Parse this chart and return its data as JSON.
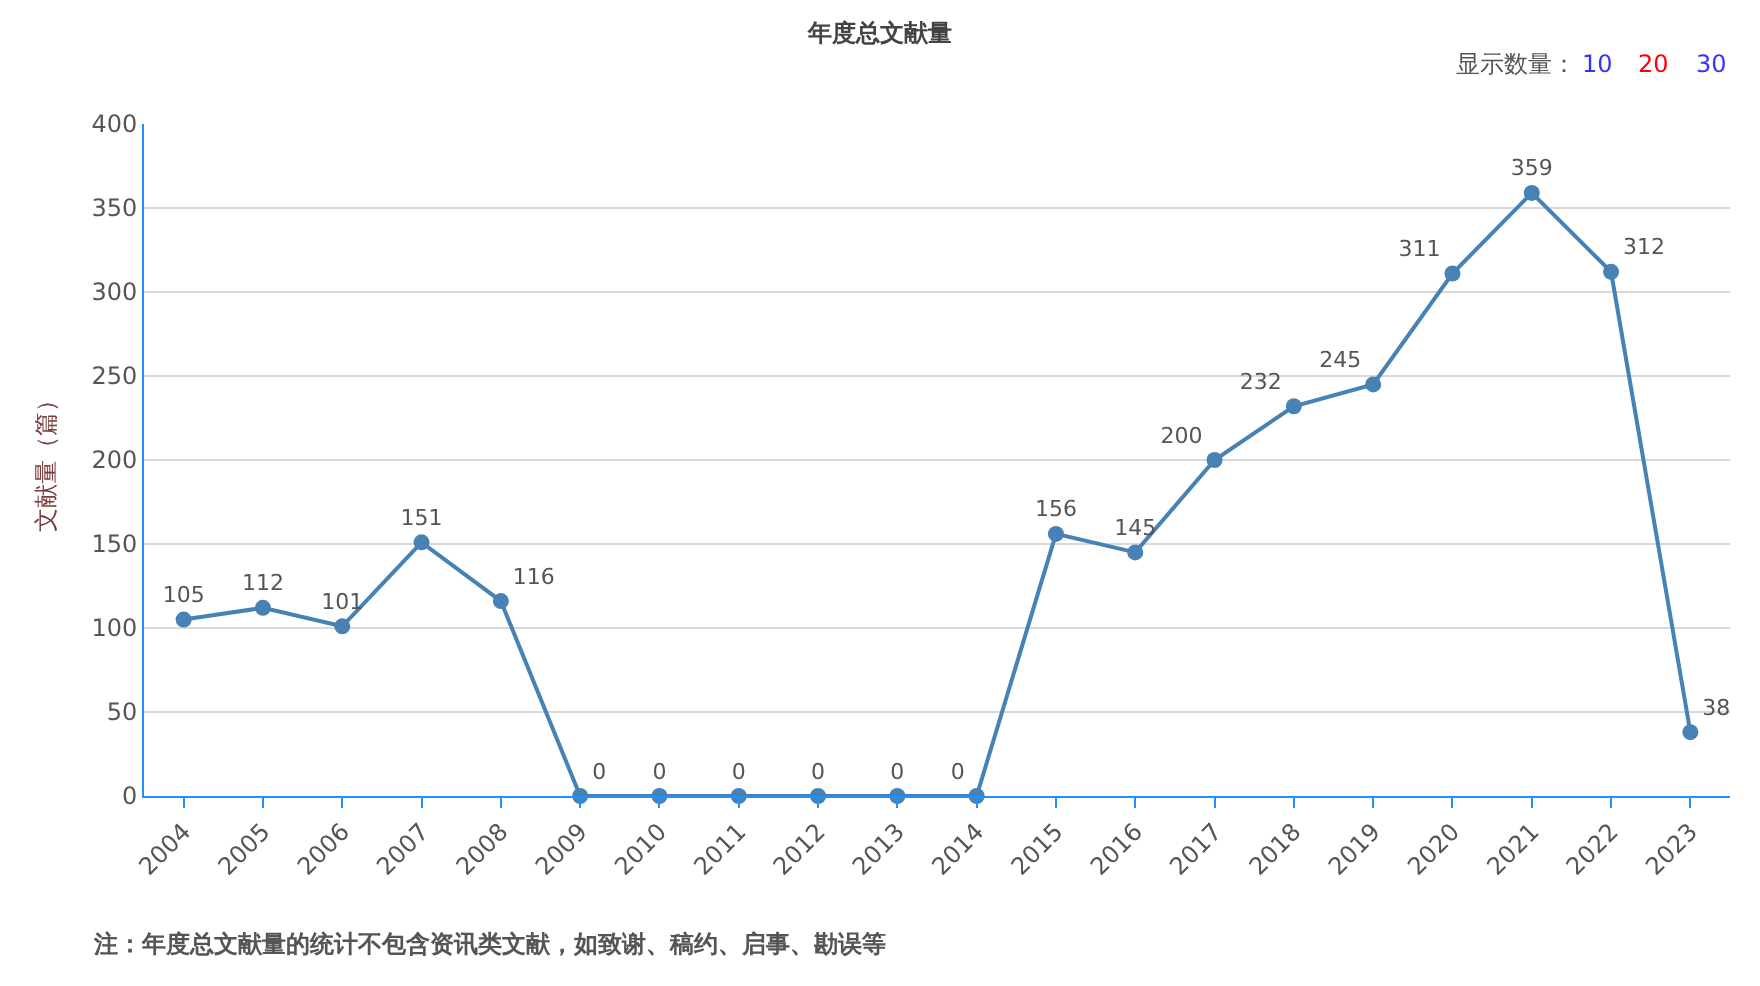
{
  "chart_data": {
    "type": "line",
    "title": "年度总文献量",
    "ylabel": "文献量（篇）",
    "categories": [
      "2004",
      "2005",
      "2006",
      "2007",
      "2008",
      "2009",
      "2010",
      "2011",
      "2012",
      "2013",
      "2014",
      "2015",
      "2016",
      "2017",
      "2018",
      "2019",
      "2020",
      "2021",
      "2022",
      "2023"
    ],
    "series": [
      {
        "color": "#4682b4",
        "values": [
          105,
          112,
          101,
          151,
          116,
          0,
          0,
          0,
          0,
          0,
          0,
          156,
          145,
          200,
          232,
          245,
          311,
          359,
          312,
          38
        ]
      }
    ],
    "ylim": [
      0,
      400
    ],
    "yticks": [
      0,
      50,
      100,
      150,
      200,
      250,
      300,
      350,
      400
    ],
    "grid": "y",
    "marker": "circle",
    "line_style": "solid",
    "data_labels": true,
    "annotations": [
      "显示数量：",
      "10",
      "20",
      "30",
      "注：年度总文献量的统计不包含资讯类文献，如致谢、稿约、启事、勘误等"
    ]
  }
}
